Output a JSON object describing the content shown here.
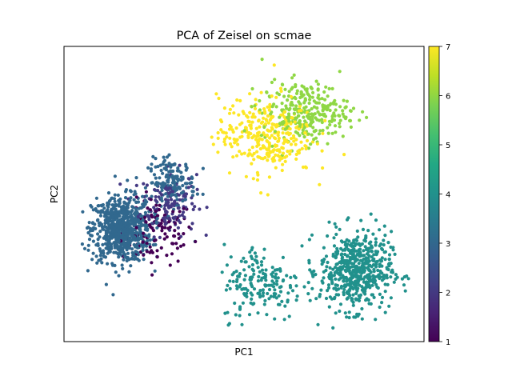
{
  "chart_data": {
    "type": "scatter",
    "title": "PCA of Zeisel on scmae",
    "xlabel": "PC1",
    "ylabel": "PC2",
    "xticks_visible": false,
    "yticks_visible": false,
    "colorbar": {
      "colormap": "viridis",
      "min": 1,
      "max": 7,
      "ticks": [
        "1",
        "2",
        "3",
        "4",
        "5",
        "6",
        "7"
      ]
    },
    "clusters": [
      {
        "label_value": 1,
        "color": "#440154",
        "center": [
          0.26,
          0.37
        ],
        "spread": [
          0.09,
          0.1
        ],
        "count": 110
      },
      {
        "label_value": 2,
        "color": "#443983",
        "center": [
          0.29,
          0.47
        ],
        "spread": [
          0.07,
          0.1
        ],
        "count": 140
      },
      {
        "label_value": 3,
        "color": "#31688e",
        "center": [
          0.16,
          0.38
        ],
        "spread": [
          0.075,
          0.1
        ],
        "count": 720
      },
      {
        "label_value": 3,
        "color": "#31688e",
        "center": [
          0.3,
          0.54
        ],
        "spread": [
          0.06,
          0.07
        ],
        "count": 160
      },
      {
        "label_value": 4,
        "color": "#21918c",
        "center": [
          0.81,
          0.24
        ],
        "spread": [
          0.09,
          0.12
        ],
        "count": 560
      },
      {
        "label_value": 4,
        "color": "#21918c",
        "center": [
          0.55,
          0.2
        ],
        "spread": [
          0.1,
          0.12
        ],
        "count": 180
      },
      {
        "label_value": 6,
        "color": "#8fd744",
        "center": [
          0.67,
          0.78
        ],
        "spread": [
          0.11,
          0.09
        ],
        "count": 280
      },
      {
        "label_value": 7,
        "color": "#fde725",
        "center": [
          0.56,
          0.7
        ],
        "spread": [
          0.12,
          0.12
        ],
        "count": 320
      }
    ]
  }
}
